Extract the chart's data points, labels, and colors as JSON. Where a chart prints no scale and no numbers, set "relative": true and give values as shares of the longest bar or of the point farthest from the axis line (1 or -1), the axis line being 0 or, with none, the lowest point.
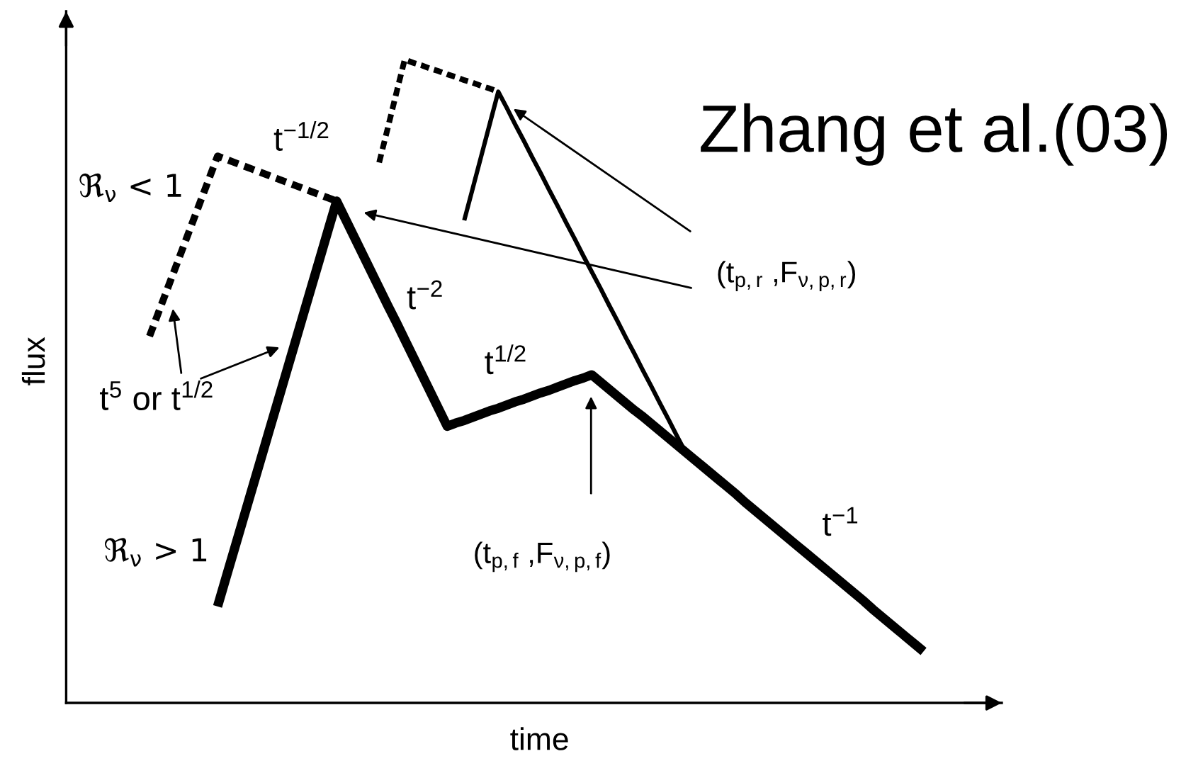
{
  "chart_data": {
    "type": "line",
    "xlabel": "time",
    "ylabel": "flux",
    "relative": true,
    "categories": [
      null,
      null,
      null,
      null,
      null,
      null,
      null,
      null,
      null,
      null,
      null,
      null,
      null,
      null,
      null,
      null,
      null,
      null,
      null,
      null,
      null,
      null,
      null,
      null,
      null,
      null,
      null,
      null,
      null,
      null,
      null,
      null,
      null,
      null,
      null,
      null,
      null,
      null,
      null,
      null,
      null,
      null,
      null,
      null,
      null,
      null,
      null,
      null,
      null,
      null,
      null,
      null,
      null,
      null,
      null,
      null,
      null,
      null,
      null,
      null,
      null,
      null,
      null,
      null,
      null,
      null,
      null,
      null,
      null,
      null,
      null,
      null,
      null,
      null,
      null,
      null,
      null,
      null,
      null,
      null,
      null,
      null,
      null,
      null,
      null,
      null,
      null,
      null,
      null,
      null,
      null,
      null
    ],
    "series": [
      {
        "color": "#000000",
        "line_style": "solid",
        "values": [
          null,
          null,
          null,
          null,
          null,
          null,
          null,
          null,
          0.15,
          0.195,
          0.24,
          0.285,
          0.33,
          0.375,
          0.42,
          0.465,
          0.51,
          0.555,
          0.6,
          0.645,
          0.69,
          0.735,
          0.78,
          0.753,
          0.726,
          0.699,
          0.672,
          0.645,
          0.618,
          0.592,
          0.565,
          0.538,
          0.511,
          0.484,
          0.457,
          0.43,
          0.435,
          0.439,
          0.444,
          0.449,
          0.454,
          0.458,
          0.463,
          0.468,
          0.472,
          0.477,
          0.482,
          0.486,
          0.491,
          0.496,
          0.501,
          0.505,
          0.51,
          0.499,
          0.488,
          0.477,
          0.466,
          0.455,
          0.445,
          0.434,
          0.423,
          0.412,
          0.401,
          0.39,
          0.379,
          0.368,
          0.357,
          0.346,
          0.335,
          0.324,
          0.312,
          0.301,
          0.29,
          0.279,
          0.268,
          0.257,
          0.246,
          0.235,
          0.224,
          0.213,
          0.202,
          0.191,
          0.18,
          0.169,
          0.158,
          0.146,
          0.135,
          0.124,
          0.113,
          0.102,
          0.091,
          0.08
        ]
      },
      {
        "color": "#000000",
        "line_style": "solid",
        "values": [
          null,
          null,
          null,
          null,
          null,
          null,
          null,
          null,
          null,
          null,
          null,
          null,
          null,
          null,
          null,
          null,
          null,
          null,
          null,
          null,
          null,
          null,
          null,
          null,
          null,
          null,
          null,
          null,
          null,
          null,
          null,
          null,
          null,
          null,
          null,
          null,
          null,
          0.75,
          0.8,
          0.85,
          0.9,
          0.95,
          0.925,
          0.899,
          0.874,
          0.848,
          0.823,
          0.797,
          0.772,
          0.746,
          0.721,
          0.695,
          0.67,
          0.645,
          0.619,
          0.594,
          0.568,
          0.543,
          0.517,
          0.492,
          0.466,
          0.441,
          0.415,
          0.39,
          null,
          null,
          null,
          null,
          null,
          null,
          null,
          null,
          null,
          null,
          null,
          null,
          null,
          null,
          null,
          null,
          null,
          null,
          null,
          null,
          null,
          null,
          null,
          null,
          null,
          null,
          null,
          null
        ]
      },
      {
        "color": "#000000",
        "line_style": "dashed",
        "values": [
          0.57,
          0.605,
          0.64,
          0.675,
          0.71,
          0.745,
          0.78,
          0.815,
          0.85,
          0.845,
          0.84,
          0.835,
          0.83,
          0.825,
          0.82,
          0.815,
          0.81,
          0.805,
          0.8,
          0.795,
          0.79,
          0.785,
          0.78,
          null,
          null,
          null,
          null,
          null,
          null,
          null,
          null,
          null,
          null,
          null,
          null,
          null,
          null,
          null,
          null,
          null,
          null,
          null,
          null,
          null,
          null,
          null,
          null,
          null,
          null,
          null,
          null,
          null,
          null,
          null,
          null,
          null,
          null,
          null,
          null,
          null,
          null,
          null,
          null,
          null,
          null,
          null,
          null,
          null,
          null,
          null,
          null,
          null,
          null,
          null,
          null,
          null,
          null,
          null,
          null,
          null,
          null,
          null,
          null,
          null,
          null,
          null,
          null,
          null,
          null,
          null,
          null,
          null
        ]
      },
      {
        "color": "#000000",
        "line_style": "dashed",
        "values": [
          null,
          null,
          null,
          null,
          null,
          null,
          null,
          null,
          null,
          null,
          null,
          null,
          null,
          null,
          null,
          null,
          null,
          null,
          null,
          null,
          null,
          null,
          null,
          null,
          null,
          null,
          null,
          0.84,
          0.893,
          0.947,
          1.0,
          0.995,
          0.991,
          0.986,
          0.982,
          0.977,
          0.973,
          0.968,
          0.964,
          0.959,
          0.955,
          0.95,
          null,
          null,
          null,
          null,
          null,
          null,
          null,
          null,
          null,
          null,
          null,
          null,
          null,
          null,
          null,
          null,
          null,
          null,
          null,
          null,
          null,
          null,
          null,
          null,
          null,
          null,
          null,
          null,
          null,
          null,
          null,
          null,
          null,
          null,
          null,
          null,
          null,
          null,
          null,
          null,
          null,
          null,
          null,
          null,
          null,
          null,
          null,
          null,
          null,
          null
        ]
      }
    ],
    "annotations": [
      "Zhang et al.(03)",
      "ℜ$_{ν}$ < 1",
      "t$^{−1/2}$",
      "t$^{−2}$",
      "t$^{1/2}$",
      "t$^{−1}$",
      "ℜ$_{ν}$ > 1",
      "t$^{5}$ or t$^{1/2}$",
      "(t$_{p,r}$ ,F$_{ν,p,r}$)",
      "(t$_{p,f}$ ,F$_{ν,p,f}$)"
    ]
  }
}
